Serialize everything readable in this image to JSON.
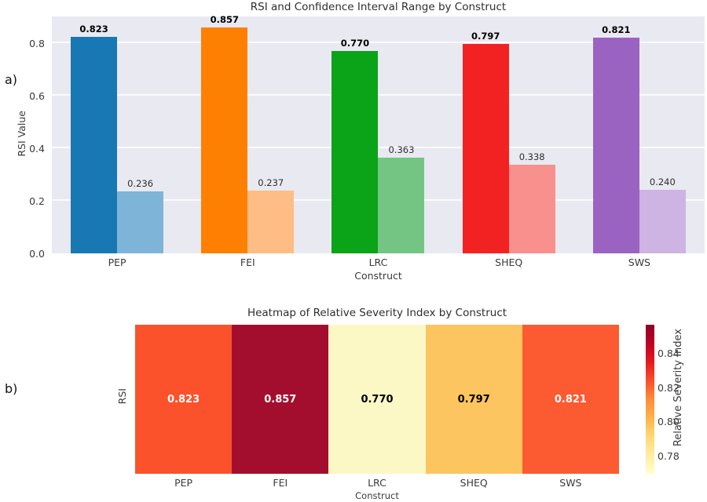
{
  "panel_labels": {
    "a": "a)",
    "b": "b)"
  },
  "chart_data": [
    {
      "type": "bar",
      "panel": "a",
      "title": "RSI and Confidence Interval Range by Construct",
      "xlabel": "Construct",
      "ylabel": "RSI Value",
      "categories": [
        "PEP",
        "FEI",
        "LRC",
        "SHEQ",
        "SWS"
      ],
      "series": [
        {
          "name": "RSI",
          "values": [
            0.823,
            0.857,
            0.77,
            0.797,
            0.821
          ],
          "labels": [
            "0.823",
            "0.857",
            "0.770",
            "0.797",
            "0.821"
          ],
          "colors": [
            "#1778b4",
            "#fe8002",
            "#0ba318",
            "#f32222",
            "#9a63c2"
          ]
        },
        {
          "name": "Confidence Interval Range",
          "values": [
            0.236,
            0.237,
            0.363,
            0.338,
            0.24
          ],
          "labels": [
            "0.236",
            "0.237",
            "0.363",
            "0.338",
            "0.240"
          ],
          "colors": [
            "#7fb4d9",
            "#fdbd85",
            "#74c583",
            "#f8908e",
            "#ceb4e2"
          ]
        }
      ],
      "ylim": [
        0,
        0.9
      ],
      "yticks": [
        0.0,
        0.2,
        0.4,
        0.6,
        0.8
      ],
      "ytick_labels": [
        "0.0",
        "0.2",
        "0.4",
        "0.6",
        "0.8"
      ],
      "grid": true,
      "plot_bg": "#e9e9f1",
      "grid_color": "#fbfbfd"
    },
    {
      "type": "heatmap",
      "panel": "b",
      "title": "Heatmap of Relative Severity Index by Construct",
      "xlabel": "Construct",
      "row_label": "RSI",
      "categories": [
        "PEP",
        "FEI",
        "LRC",
        "SHEQ",
        "SWS"
      ],
      "values": [
        0.823,
        0.857,
        0.77,
        0.797,
        0.821
      ],
      "labels": [
        "0.823",
        "0.857",
        "0.770",
        "0.797",
        "0.821"
      ],
      "cell_colors": [
        "#fb522c",
        "#a40e2e",
        "#fcf8c5",
        "#fdc55f",
        "#fc5a30"
      ],
      "text_colors": [
        "#ffffff",
        "#ffffff",
        "#000000",
        "#000000",
        "#ffffff"
      ],
      "colorbar": {
        "label": "Relative Severity Index",
        "ticks": [
          0.84,
          0.82,
          0.8,
          0.78
        ],
        "tick_labels": [
          "0.84",
          "0.82",
          "0.80",
          "0.78"
        ],
        "vmin": 0.77,
        "vmax": 0.857,
        "gradient_bottom_to_top": [
          "#ffffcc",
          "#ffeda0",
          "#fed976",
          "#feb24c",
          "#fd8d3c",
          "#fc4e2a",
          "#e31a1c",
          "#bd0026",
          "#8f0026"
        ]
      }
    }
  ]
}
